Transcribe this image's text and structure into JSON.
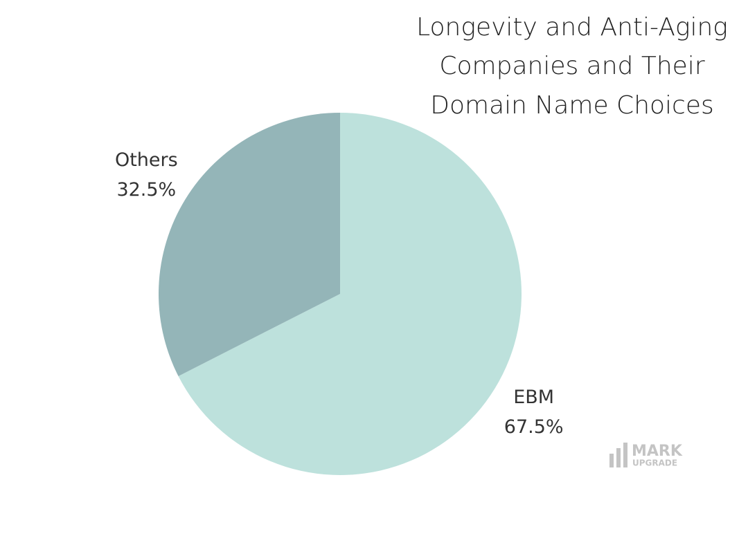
{
  "chart_data": {
    "type": "pie",
    "title": [
      "Longevity and Anti-Aging",
      "Companies and Their",
      "Domain Name Choices"
    ],
    "categories": [
      "EBM",
      "Others"
    ],
    "values": [
      67.5,
      32.5
    ],
    "value_labels": [
      "67.5%",
      "32.5%"
    ],
    "colors": [
      "#bde1dc",
      "#94b5b8"
    ]
  },
  "watermark": [
    "MARK",
    "UPGRADE"
  ]
}
